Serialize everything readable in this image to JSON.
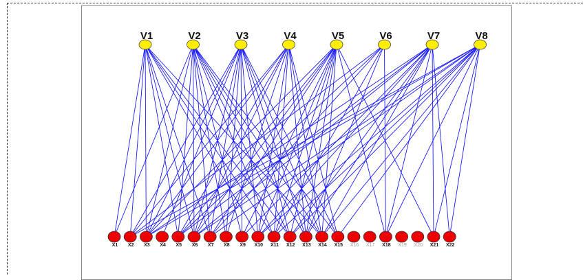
{
  "diagram": {
    "top_nodes": [
      "V1",
      "V2",
      "V3",
      "V4",
      "V5",
      "V6",
      "V7",
      "V8"
    ],
    "bottom_nodes": [
      "X1",
      "X2",
      "X3",
      "X4",
      "X5",
      "X6",
      "X7",
      "X8",
      "X9",
      "X10",
      "X11",
      "X12",
      "X13",
      "X14",
      "X15",
      "X16",
      "X17",
      "X18",
      "X19",
      "X20",
      "X21",
      "X22"
    ],
    "edges": {
      "V1": [
        "X1",
        "X2",
        "X3",
        "X5",
        "X6",
        "X7",
        "X10",
        "X11",
        "X12",
        "X14"
      ],
      "V2": [
        "X1",
        "X3",
        "X5",
        "X6",
        "X7",
        "X8",
        "X9",
        "X11",
        "X12",
        "X13",
        "X14",
        "X15"
      ],
      "V3": [
        "X2",
        "X3",
        "X4",
        "X6",
        "X7",
        "X8",
        "X9",
        "X10",
        "X12",
        "X13",
        "X14",
        "X15"
      ],
      "V4": [
        "X2",
        "X3",
        "X5",
        "X6",
        "X8",
        "X10",
        "X11",
        "X13",
        "X14",
        "X15"
      ],
      "V5": [
        "X3",
        "X5",
        "X6",
        "X7",
        "X9",
        "X10",
        "X11",
        "X12",
        "X13",
        "X14",
        "X18",
        "X21"
      ],
      "V6": [
        "X2",
        "X5",
        "X7",
        "X11",
        "X13",
        "X18"
      ],
      "V7": [
        "X3",
        "X5",
        "X6",
        "X9",
        "X10",
        "X12",
        "X13",
        "X14",
        "X18",
        "X21",
        "X22"
      ],
      "V8": [
        "X2",
        "X3",
        "X6",
        "X7",
        "X10",
        "X11",
        "X12",
        "X14",
        "X15",
        "X18",
        "X21",
        "X22"
      ]
    },
    "colors": {
      "top_fill": "#ffee00",
      "bottom_fill": "#ee0000",
      "edge": "#1a1aff",
      "label_dark": "#111111",
      "label_faint": "#999999"
    },
    "faint_labels": [
      "X16",
      "X17",
      "X19",
      "X20"
    ]
  }
}
